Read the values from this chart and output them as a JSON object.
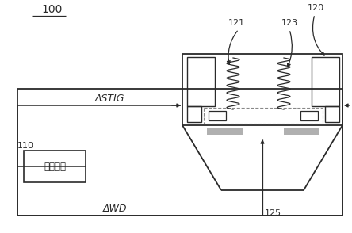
{
  "bg_color": "#ffffff",
  "line_color": "#2a2a2a",
  "label_100": "100",
  "label_110": "110",
  "label_120": "120",
  "label_121": "121",
  "label_123": "123",
  "label_125": "125",
  "label_stig": "ΔSTIG",
  "label_wd": "ΔWD",
  "label_control": "控制单元",
  "fig_width": 4.44,
  "fig_height": 2.94,
  "dpi": 100
}
